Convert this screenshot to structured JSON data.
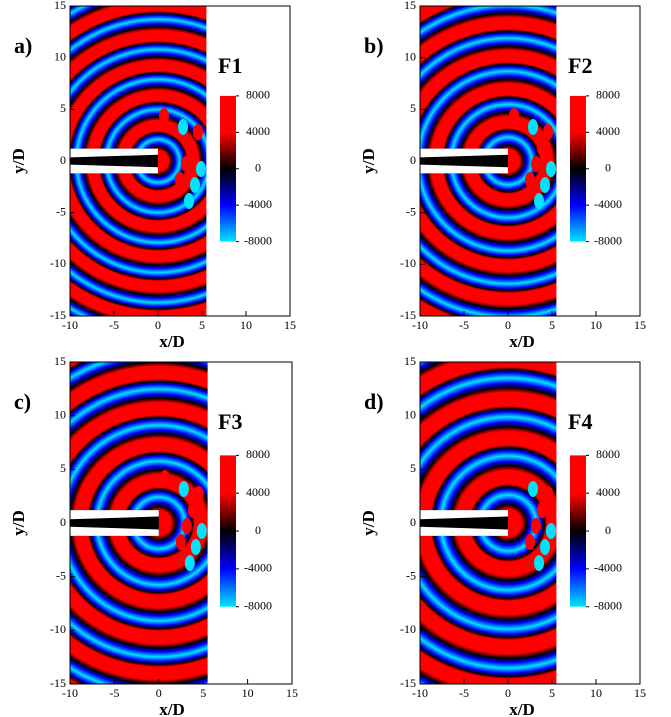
{
  "chart_data": [
    {
      "type": "contour",
      "panel_label": "a)",
      "title": "F1",
      "xlabel": "x/D",
      "ylabel": "y/D",
      "xlim": [
        -10,
        15
      ],
      "ylim": [
        -15,
        15
      ],
      "xticks": [
        -10,
        -5,
        0,
        5,
        10,
        15
      ],
      "yticks": [
        -15,
        -10,
        -5,
        0,
        5,
        10,
        15
      ],
      "domain_xlim": [
        -10,
        5.5
      ],
      "colorbar_lim": [
        -8000,
        8000
      ],
      "colorbar_ticks": [
        8000,
        4000,
        0,
        -4000,
        -8000
      ],
      "colors": [
        "#00e5ff",
        "#0000ff",
        "#000000",
        "#ff0000",
        "#ff0000"
      ]
    },
    {
      "type": "contour",
      "panel_label": "b)",
      "title": "F2",
      "xlabel": "x/D",
      "ylabel": "y/D",
      "xlim": [
        -10,
        15
      ],
      "ylim": [
        -15,
        15
      ],
      "xticks": [
        -10,
        -5,
        0,
        5,
        10,
        15
      ],
      "yticks": [
        -15,
        -10,
        -5,
        0,
        5,
        10,
        15
      ],
      "domain_xlim": [
        -10,
        5.5
      ],
      "colorbar_lim": [
        -8000,
        8000
      ],
      "colorbar_ticks": [
        8000,
        4000,
        0,
        -4000,
        -8000
      ],
      "colors": [
        "#00e5ff",
        "#0000ff",
        "#000000",
        "#ff0000",
        "#ff0000"
      ]
    },
    {
      "type": "contour",
      "panel_label": "c)",
      "title": "F3",
      "xlabel": "x/D",
      "ylabel": "y/D",
      "xlim": [
        -10,
        15
      ],
      "ylim": [
        -15,
        15
      ],
      "xticks": [
        -10,
        -5,
        0,
        5,
        10,
        15
      ],
      "yticks": [
        -15,
        -10,
        -5,
        0,
        5,
        10,
        15
      ],
      "domain_xlim": [
        -10,
        5.5
      ],
      "colorbar_lim": [
        -8000,
        8000
      ],
      "colorbar_ticks": [
        8000,
        4000,
        0,
        -4000,
        -8000
      ],
      "colors": [
        "#00e5ff",
        "#0000ff",
        "#000000",
        "#ff0000",
        "#ff0000"
      ]
    },
    {
      "type": "contour",
      "panel_label": "d)",
      "title": "F4",
      "xlabel": "x/D",
      "ylabel": "y/D",
      "xlim": [
        -10,
        15
      ],
      "ylim": [
        -15,
        15
      ],
      "xticks": [
        -10,
        -5,
        0,
        5,
        10,
        15
      ],
      "yticks": [
        -15,
        -10,
        -5,
        0,
        5,
        10,
        15
      ],
      "domain_xlim": [
        -10,
        5.5
      ],
      "colorbar_lim": [
        -8000,
        8000
      ],
      "colorbar_ticks": [
        8000,
        4000,
        0,
        -4000,
        -8000
      ],
      "colors": [
        "#00e5ff",
        "#0000ff",
        "#000000",
        "#ff0000",
        "#ff0000"
      ]
    }
  ]
}
